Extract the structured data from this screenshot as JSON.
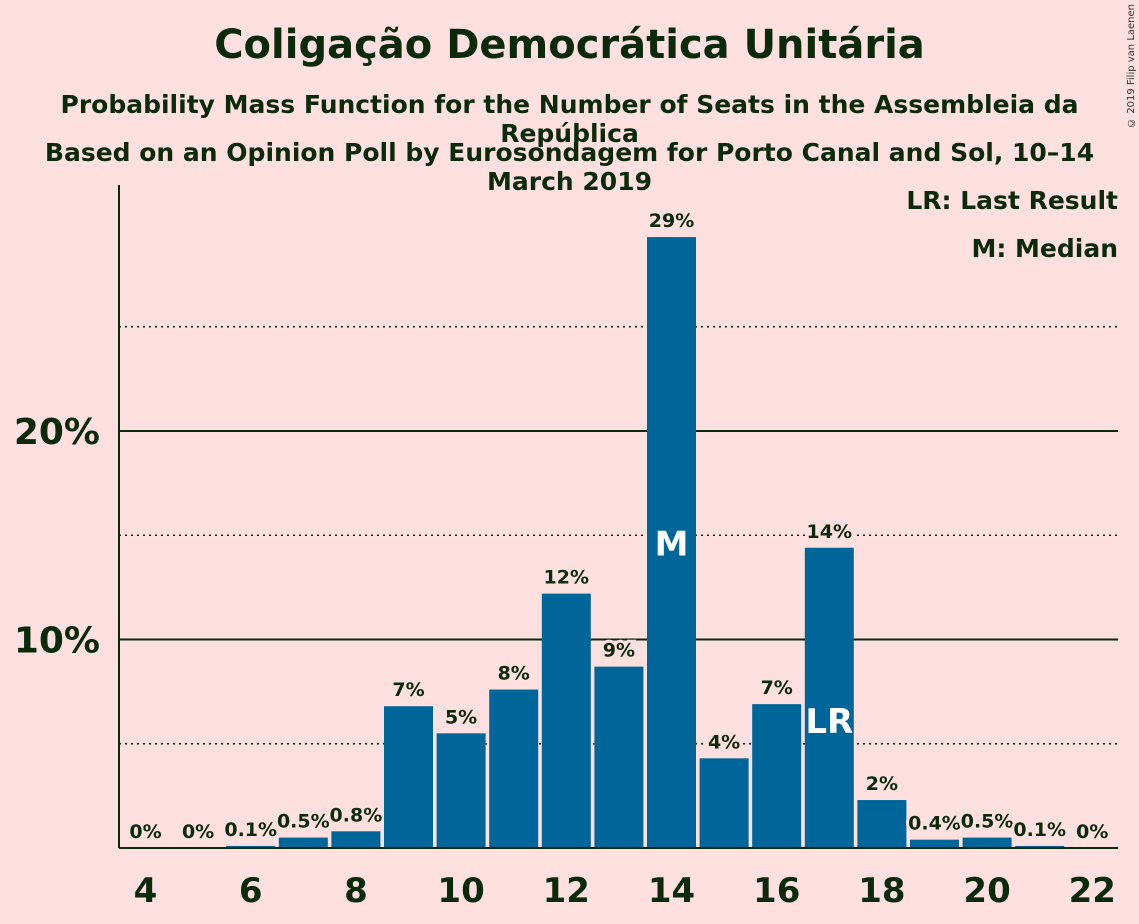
{
  "title": "Coligação Democrática Unitária",
  "subtitle1": "Probability Mass Function for the Number of Seats in the Assembleia da República",
  "subtitle2": "Based on an Opinion Poll by Eurosondagem for Porto Canal and Sol, 10–14 March 2019",
  "copyright": "© 2019 Filip van Laenen",
  "legend": {
    "last_result": "LR: Last Result",
    "median": "M: Median"
  },
  "colors": {
    "background": "#ffe0e0",
    "bar": "#006699",
    "text": "#0a2a0a"
  },
  "chart_data": {
    "type": "bar",
    "x": [
      4,
      5,
      6,
      7,
      8,
      9,
      10,
      11,
      12,
      13,
      14,
      15,
      16,
      17,
      18,
      19,
      20,
      21,
      22
    ],
    "values": [
      0,
      0,
      0.1,
      0.5,
      0.8,
      6.8,
      5.5,
      7.6,
      12.2,
      8.7,
      29.3,
      4.3,
      6.9,
      14.4,
      2.3,
      0.4,
      0.5,
      0.1,
      0
    ],
    "labels": [
      "0%",
      "0%",
      "0.1%",
      "0.5%",
      "0.8%",
      "7%",
      "5%",
      "8%",
      "12%",
      "9%",
      "29%",
      "4%",
      "7%",
      "14%",
      "2%",
      "0.4%",
      "0.5%",
      "0.1%",
      "0%"
    ],
    "x_ticks": [
      4,
      6,
      8,
      10,
      12,
      14,
      16,
      18,
      20,
      22
    ],
    "y_ticks": [
      {
        "value": 10,
        "label": "10%"
      },
      {
        "value": 20,
        "label": "20%"
      }
    ],
    "minor_gridlines": [
      5,
      15,
      25
    ],
    "ylim": [
      0,
      32
    ],
    "median_seat": 14,
    "median_marker": "M",
    "last_result_seat": 17,
    "last_result_marker": "LR"
  }
}
